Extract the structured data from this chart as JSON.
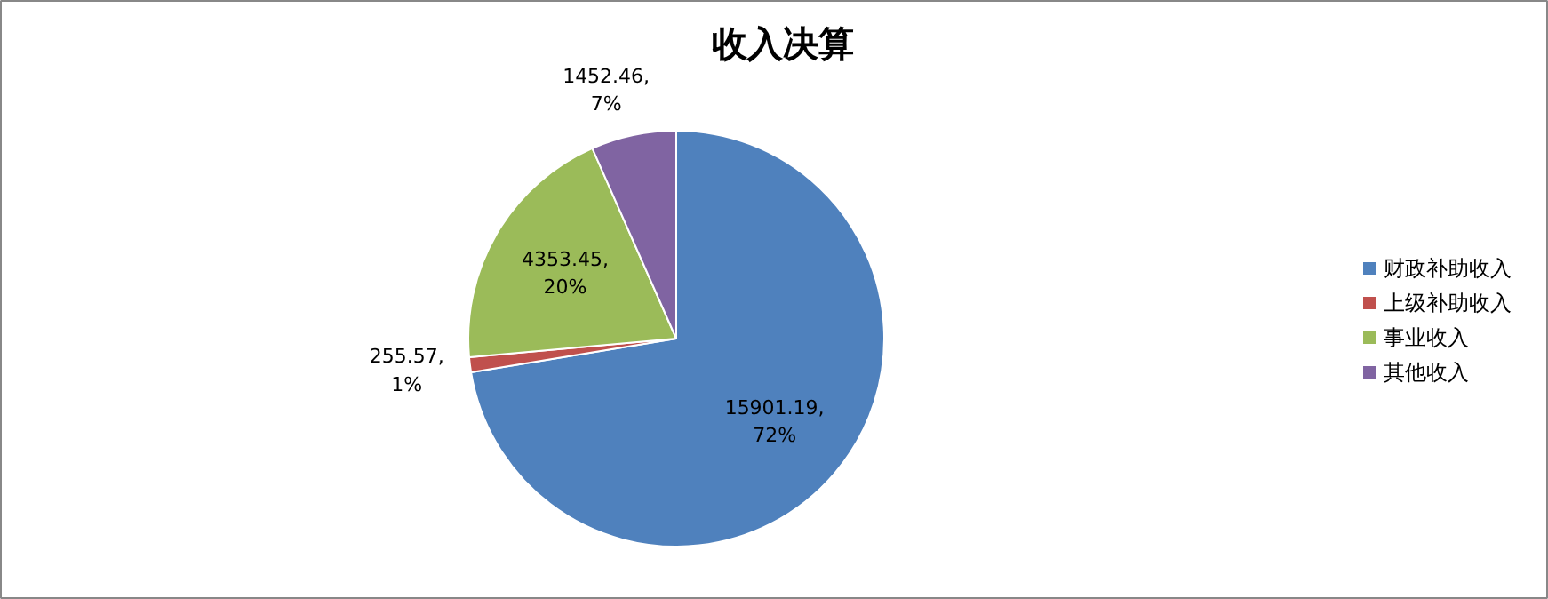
{
  "chart_data": {
    "type": "pie",
    "title": "收入决算",
    "categories": [
      "财政补助收入",
      "上级补助收入",
      "事业收入",
      "其他收入"
    ],
    "values": [
      15901.19,
      255.57,
      4353.45,
      1452.46
    ],
    "colors": [
      "#4f81bd",
      "#c0504d",
      "#9bbb59",
      "#8064a2"
    ],
    "value_labels": [
      "15901.19,\n72%",
      "255.57,\n1%",
      "4353.45,\n20%",
      "1452.46,\n7%"
    ],
    "legend": "right"
  }
}
